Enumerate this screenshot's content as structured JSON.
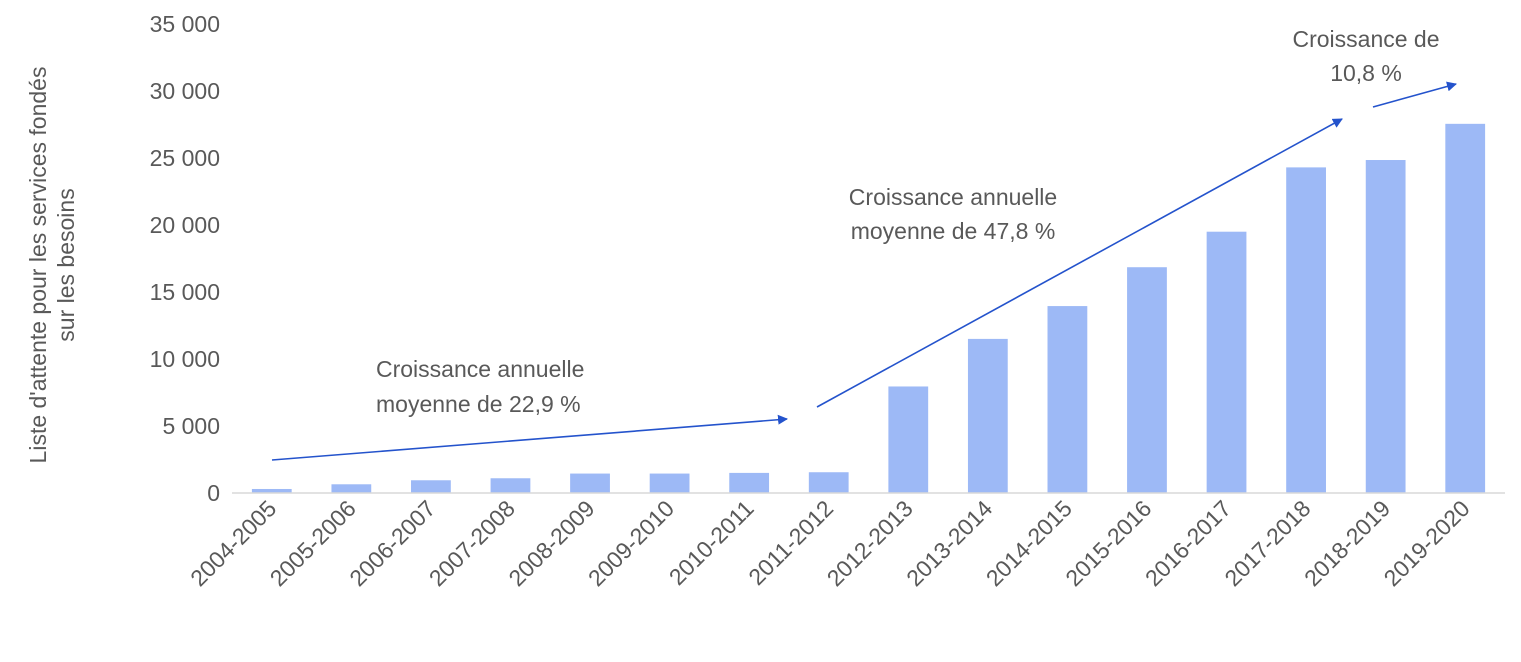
{
  "chart_data": {
    "type": "bar",
    "title": "",
    "xlabel": "",
    "ylabel_lines": [
      "Liste d'attente pour les services fondés",
      "sur les besoins"
    ],
    "ylim": [
      0,
      35000
    ],
    "y_ticks": [
      0,
      5000,
      10000,
      15000,
      20000,
      25000,
      30000,
      35000
    ],
    "y_tick_labels": [
      "0",
      "5 000",
      "10 000",
      "15 000",
      "20 000",
      "25 000",
      "30 000",
      "35 000"
    ],
    "grid": false,
    "legend": "none",
    "bar_color": "#9DB9F6",
    "arrow_color": "#2453CC",
    "categories": [
      "2004-2005",
      "2005-2006",
      "2006-2007",
      "2007-2008",
      "2008-2009",
      "2009-2010",
      "2010-2011",
      "2011-2012",
      "2012-2013",
      "2013-2014",
      "2014-2015",
      "2015-2016",
      "2016-2017",
      "2017-2018",
      "2018-2019",
      "2019-2020"
    ],
    "values": [
      300,
      650,
      950,
      1100,
      1450,
      1450,
      1500,
      1550,
      7950,
      11500,
      13950,
      16850,
      19500,
      24300,
      24850,
      27550
    ],
    "annotations": [
      {
        "lines": [
          "Croissance annuelle",
          "moyenne de 22,9 %"
        ],
        "align": "start"
      },
      {
        "lines": [
          "Croissance annuelle",
          "moyenne de 47,8 %"
        ],
        "align": "middle"
      },
      {
        "lines": [
          "Croissance de",
          "10,8 %"
        ],
        "align": "middle"
      }
    ]
  }
}
